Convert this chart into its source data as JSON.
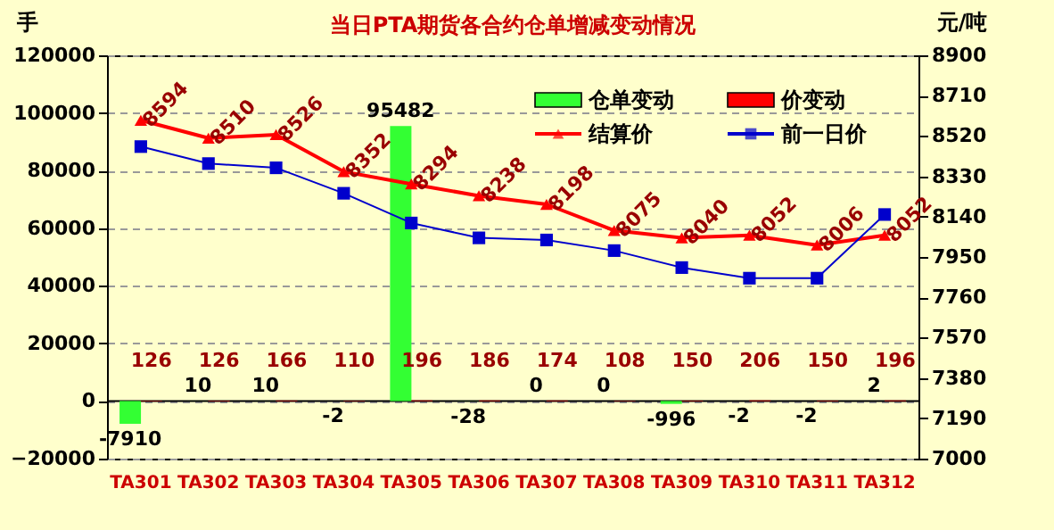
{
  "chart_data": {
    "type": "bar",
    "title": "当日PTA期货各合约仓单增减变动情况",
    "ylabel": "手",
    "y2label": "元/吨",
    "categories": [
      "TA301",
      "TA302",
      "TA303",
      "TA304",
      "TA305",
      "TA306",
      "TA307",
      "TA308",
      "TA309",
      "TA310",
      "TA311",
      "TA312"
    ],
    "series": [
      {
        "name": "仓单变动",
        "color": "#33ff33",
        "values": [
          -7910,
          10,
          10,
          -2,
          95482,
          -28,
          0,
          0,
          -996,
          -2,
          -2,
          2
        ],
        "value_labels": [
          "-7910",
          "10",
          "10",
          "-2",
          "95482",
          "-28",
          "0",
          "0",
          "-996",
          "-2",
          "-2",
          "2"
        ]
      },
      {
        "name": "价变动",
        "color": "#ff0000",
        "values": [
          126,
          126,
          166,
          110,
          196,
          186,
          174,
          108,
          150,
          206,
          150,
          196
        ],
        "value_labels": [
          "126",
          "126",
          "166",
          "110",
          "196",
          "186",
          "174",
          "108",
          "150",
          "206",
          "150",
          "196"
        ]
      },
      {
        "name": "结算价",
        "type": "line",
        "axis": "y2",
        "color": "#ff0000",
        "marker": "triangle",
        "values": [
          8594,
          8510,
          8526,
          8352,
          8294,
          8238,
          8198,
          8075,
          8040,
          8052,
          8006,
          8052
        ],
        "value_labels": [
          "8594",
          "8510",
          "8526",
          "8352",
          "8294",
          "8238",
          "8198",
          "8075",
          "8040",
          "8052",
          "8006",
          "8052"
        ]
      },
      {
        "name": "前一日价",
        "type": "line",
        "axis": "y2",
        "color": "#0000cc",
        "marker": "square",
        "values": [
          8470,
          8390,
          8370,
          8250,
          8110,
          8040,
          8030,
          7980,
          7900,
          7850,
          7850,
          8150
        ]
      }
    ],
    "ylim": [
      -20000,
      120000
    ],
    "yticks": [
      -20000,
      0,
      20000,
      40000,
      60000,
      80000,
      100000,
      120000
    ],
    "y2lim": [
      7000,
      8900
    ],
    "y2ticks": [
      7000,
      7190,
      7380,
      7570,
      7760,
      7950,
      8140,
      8330,
      8520,
      8710,
      8900
    ],
    "grid": "y",
    "legend": "top right"
  }
}
